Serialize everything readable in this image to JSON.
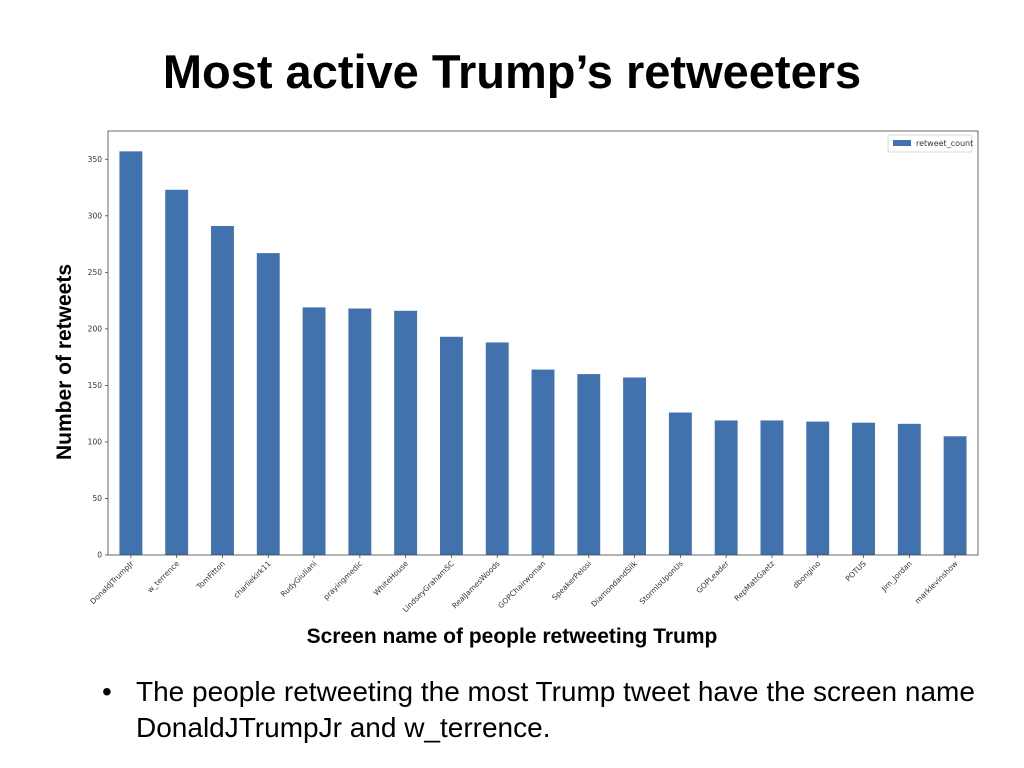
{
  "slide": {
    "title": "Most active Trump’s retweeters",
    "bullets": [
      "The people retweeting the most Trump tweet have the screen name DonaldJTrumpJr and w_terrence."
    ],
    "bullet_symbol": "•"
  },
  "chart_data": {
    "type": "bar",
    "title": "",
    "xlabel": "Screen name of people retweeting Trump",
    "ylabel": "Number of retweets",
    "ylim": [
      0,
      375
    ],
    "yticks": [
      0,
      50,
      100,
      150,
      200,
      250,
      300,
      350
    ],
    "legend_position": "top-right",
    "grid": false,
    "bar_color": "#4172ae",
    "categories": [
      "DonaldJTrumpJr",
      "w_terrence",
      "TomFitton",
      "charliekirk11",
      "RudyGiuliani",
      "prayingmedic",
      "WhiteHouse",
      "LindseyGrahamSC",
      "RealJamesWoods",
      "GOPChairwoman",
      "SpeakerPelosi",
      "DiamondandSilk",
      "StormIsUponUs",
      "GOPLeader",
      "RepMattGaetz",
      "dbongino",
      "POTUS",
      "Jim_Jordan",
      "marklevinshow"
    ],
    "series": [
      {
        "name": "retweet_count",
        "values": [
          357,
          323,
          291,
          267,
          219,
          218,
          216,
          193,
          188,
          164,
          160,
          157,
          126,
          119,
          119,
          118,
          117,
          116,
          105
        ]
      }
    ]
  }
}
